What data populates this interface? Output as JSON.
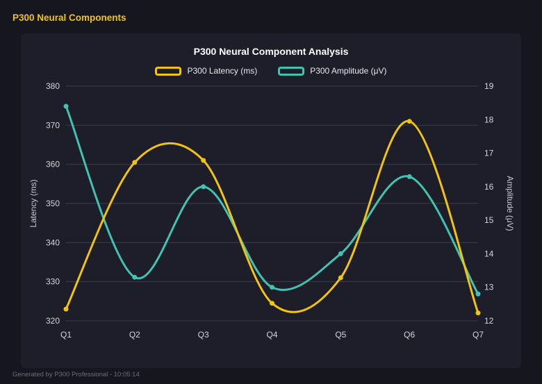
{
  "header": {
    "title": "P300 Neural Components"
  },
  "footer": {
    "text": "Generated by P300 Professional - 10:05:14"
  },
  "colors": {
    "header_accent": "#f2c40f",
    "page_background": "#16161e",
    "panel_background": "#1e1e2a",
    "latency_line": "#f2c40f",
    "amplitude_line": "#41c3b3",
    "gridline": "rgba(255,255,255,0.14)"
  },
  "chart_data": {
    "type": "line",
    "title": "P300 Neural Component Analysis",
    "categories": [
      "Q1",
      "Q2",
      "Q3",
      "Q4",
      "Q5",
      "Q6",
      "Q7"
    ],
    "series": [
      {
        "name": "P300 Latency (ms)",
        "yaxis": "left",
        "color": "#f2c40f",
        "values": [
          323,
          360.5,
          361,
          324.5,
          331,
          371,
          322
        ]
      },
      {
        "name": "P300 Amplitude (μV)",
        "yaxis": "right",
        "color": "#41c3b3",
        "values": [
          18.4,
          13.3,
          16.0,
          13.0,
          14.0,
          16.3,
          12.8
        ]
      }
    ],
    "left_axis": {
      "label": "Latency (ms)",
      "min": 320,
      "max": 380,
      "step": 10
    },
    "right_axis": {
      "label": "Amplitude (μV)",
      "min": 12,
      "max": 19,
      "step": 1
    },
    "xlabel": "",
    "grid": true,
    "legend_position": "top",
    "curve": "smooth"
  }
}
